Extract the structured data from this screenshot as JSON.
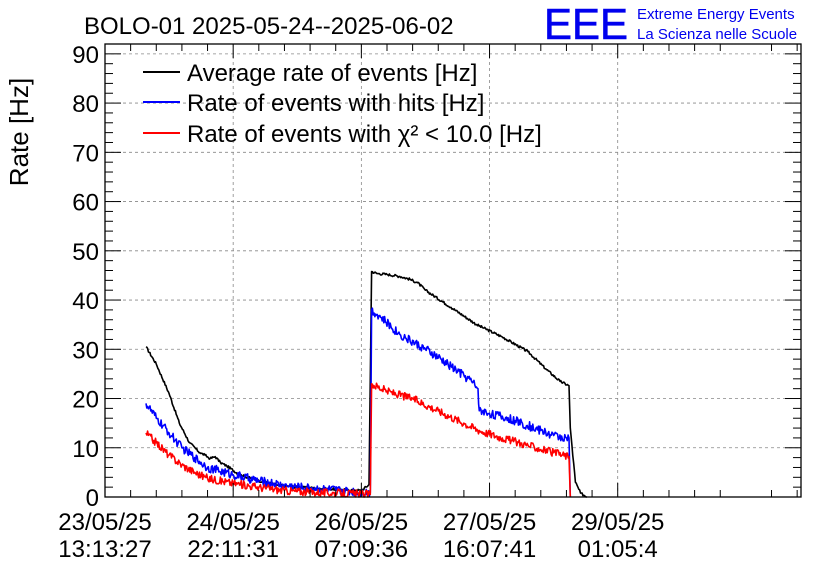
{
  "chart_data": {
    "type": "line",
    "title": "BOLO-01 2025-05-24--2025-06-02",
    "ylabel": "Rate [Hz]",
    "xlabel": "",
    "ylim": [
      0,
      92
    ],
    "xlim": [
      0,
      5.43
    ],
    "x_unit": "days since 23/05/25 13:13:27",
    "grid": true,
    "legend_position": "top-left",
    "y_ticks": [
      0,
      10,
      20,
      30,
      40,
      50,
      60,
      70,
      80,
      90
    ],
    "x_ticks": [
      {
        "x": 0,
        "date": "23/05/25",
        "time": "13:13:27"
      },
      {
        "x": 1,
        "date": "24/05/25",
        "time": "22:11:31"
      },
      {
        "x": 2,
        "date": "26/05/25",
        "time": "07:09:36"
      },
      {
        "x": 3,
        "date": "27/05/25",
        "time": "16:07:41"
      },
      {
        "x": 4,
        "date": "29/05/25",
        "time": "01:05:4"
      }
    ],
    "series": [
      {
        "name": "Average rate of events [Hz]",
        "color": "#000000",
        "noise": 0.25,
        "points": [
          [
            0.32,
            30.5
          ],
          [
            0.4,
            27
          ],
          [
            0.5,
            21
          ],
          [
            0.58,
            15
          ],
          [
            0.66,
            11
          ],
          [
            0.74,
            9
          ],
          [
            0.78,
            8.5
          ],
          [
            0.82,
            7.8
          ],
          [
            0.86,
            8.2
          ],
          [
            0.9,
            7
          ],
          [
            0.95,
            6.3
          ],
          [
            1.05,
            4.5
          ],
          [
            1.2,
            3.3
          ],
          [
            1.35,
            2.4
          ],
          [
            1.5,
            2
          ],
          [
            1.7,
            1.7
          ],
          [
            1.85,
            1.5
          ],
          [
            1.95,
            1.4
          ],
          [
            2.0,
            1.3
          ],
          [
            2.06,
            2.5
          ],
          [
            2.08,
            45.8
          ],
          [
            2.12,
            45.4
          ],
          [
            2.2,
            45.2
          ],
          [
            2.3,
            44.8
          ],
          [
            2.38,
            44.2
          ],
          [
            2.44,
            43.5
          ],
          [
            2.5,
            42
          ],
          [
            2.7,
            38.5
          ],
          [
            2.9,
            35
          ],
          [
            3.1,
            32.5
          ],
          [
            3.3,
            29.5
          ],
          [
            3.44,
            26
          ],
          [
            3.55,
            23.5
          ],
          [
            3.62,
            22.6
          ],
          [
            3.63,
            14
          ],
          [
            3.67,
            3
          ],
          [
            3.71,
            0.8
          ],
          [
            3.76,
            0
          ]
        ]
      },
      {
        "name": "Rate of events with hits [Hz]",
        "color": "#0000ff",
        "noise": 0.9,
        "points": [
          [
            0.32,
            19
          ],
          [
            0.4,
            16
          ],
          [
            0.5,
            13
          ],
          [
            0.6,
            10
          ],
          [
            0.7,
            8
          ],
          [
            0.8,
            6
          ],
          [
            1.0,
            4.5
          ],
          [
            1.2,
            3.3
          ],
          [
            1.4,
            2.3
          ],
          [
            1.6,
            1.8
          ],
          [
            1.8,
            1.4
          ],
          [
            2.0,
            1.0
          ],
          [
            2.07,
            0.9
          ],
          [
            2.08,
            38
          ],
          [
            2.15,
            36.5
          ],
          [
            2.3,
            33
          ],
          [
            2.5,
            30
          ],
          [
            2.7,
            26.5
          ],
          [
            2.86,
            23.5
          ],
          [
            2.91,
            22
          ],
          [
            2.92,
            17.5
          ],
          [
            3.0,
            17
          ],
          [
            3.2,
            15.5
          ],
          [
            3.4,
            13.5
          ],
          [
            3.5,
            12.5
          ],
          [
            3.6,
            12
          ],
          [
            3.62,
            12
          ],
          [
            3.63,
            0
          ]
        ]
      },
      {
        "name": "Rate of events with χ² < 10.0 [Hz]",
        "color": "#ff0000",
        "noise": 0.8,
        "points": [
          [
            0.32,
            13
          ],
          [
            0.4,
            11
          ],
          [
            0.5,
            8.5
          ],
          [
            0.6,
            6.5
          ],
          [
            0.7,
            5
          ],
          [
            0.8,
            3.8
          ],
          [
            1.0,
            2.8
          ],
          [
            1.2,
            2
          ],
          [
            1.4,
            1.3
          ],
          [
            1.6,
            1
          ],
          [
            1.8,
            0.8
          ],
          [
            2.0,
            0.6
          ],
          [
            2.07,
            0.5
          ],
          [
            2.08,
            23
          ],
          [
            2.2,
            21.5
          ],
          [
            2.4,
            20
          ],
          [
            2.6,
            17.5
          ],
          [
            2.8,
            15
          ],
          [
            2.92,
            13.5
          ],
          [
            3.1,
            12
          ],
          [
            3.3,
            10.5
          ],
          [
            3.5,
            9
          ],
          [
            3.62,
            8.2
          ],
          [
            3.63,
            0
          ]
        ]
      }
    ]
  },
  "logo": {
    "text": "EEE",
    "line1": "Extreme Energy Events",
    "line2": "La Scienza nelle Scuole",
    "color": "#0000ee"
  }
}
